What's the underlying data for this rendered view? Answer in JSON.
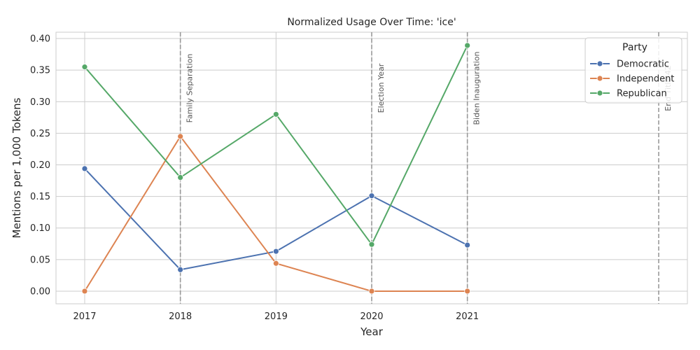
{
  "chart_data": {
    "type": "line",
    "title": "Normalized Usage Over Time: 'ice'",
    "xlabel": "Year",
    "ylabel": "Mentions per 1,000 Tokens",
    "x": [
      2017,
      2018,
      2019,
      2020,
      2021
    ],
    "xlim": [
      2016.7,
      2023.3
    ],
    "ylim": [
      -0.02,
      0.41
    ],
    "yticks": [
      0.0,
      0.05,
      0.1,
      0.15,
      0.2,
      0.25,
      0.3,
      0.35,
      0.4
    ],
    "ytick_labels": [
      "0.00",
      "0.05",
      "0.10",
      "0.15",
      "0.20",
      "0.25",
      "0.30",
      "0.35",
      "0.40"
    ],
    "xtick_labels": [
      "2017",
      "2018",
      "2019",
      "2020",
      "2021"
    ],
    "grid": true,
    "legend": {
      "title": "Party",
      "placement": "top-right"
    },
    "series": [
      {
        "name": "Democratic",
        "color": "#4c72b0",
        "values": [
          0.194,
          0.034,
          0.063,
          0.151,
          0.073
        ]
      },
      {
        "name": "Independent",
        "color": "#dd8452",
        "values": [
          0.0,
          0.245,
          0.044,
          0.0,
          0.0
        ]
      },
      {
        "name": "Republican",
        "color": "#55a868",
        "values": [
          0.355,
          0.18,
          0.28,
          0.074,
          0.389
        ]
      }
    ],
    "annotations": [
      {
        "x": 2018,
        "text": "Family Separation"
      },
      {
        "x": 2020,
        "text": "Election Year"
      },
      {
        "x": 2021,
        "text": "Biden Inauguration"
      },
      {
        "x": 2023,
        "text": "End Title 42"
      }
    ]
  }
}
